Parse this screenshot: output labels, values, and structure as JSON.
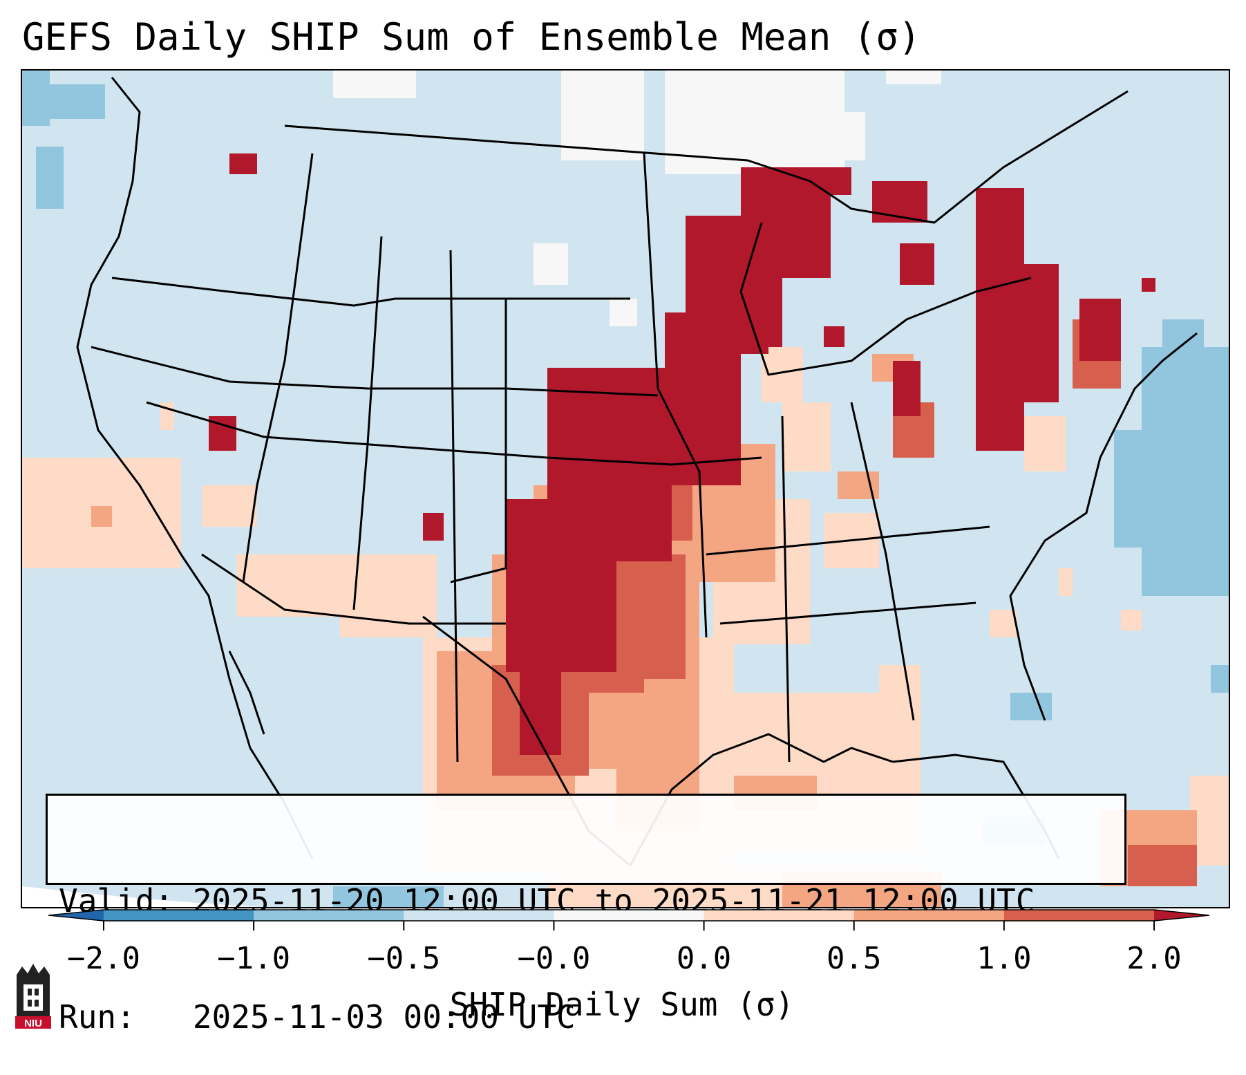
{
  "title": "GEFS Daily SHIP Sum of Ensemble Mean (σ)",
  "valid_line": "Valid: 2025-11-20 12:00 UTC to 2025-11-21 12:00 UTC",
  "run_line": "Run:   2025-11-03 00:00 UTC",
  "colorbar": {
    "label": "SHIP Daily Sum (σ)",
    "ticks": [
      "−2.0",
      "−1.0",
      "−0.5",
      "−0.0",
      "0.0",
      "0.5",
      "1.0",
      "2.0"
    ],
    "colors": [
      "#2166ac",
      "#4393c3",
      "#92c5de",
      "#d1e5f0",
      "#f7f7f7",
      "#fddbc7",
      "#f4a582",
      "#d6604d",
      "#b2182b"
    ]
  },
  "logo": {
    "text": "NIU",
    "color": "#c8102e"
  }
}
